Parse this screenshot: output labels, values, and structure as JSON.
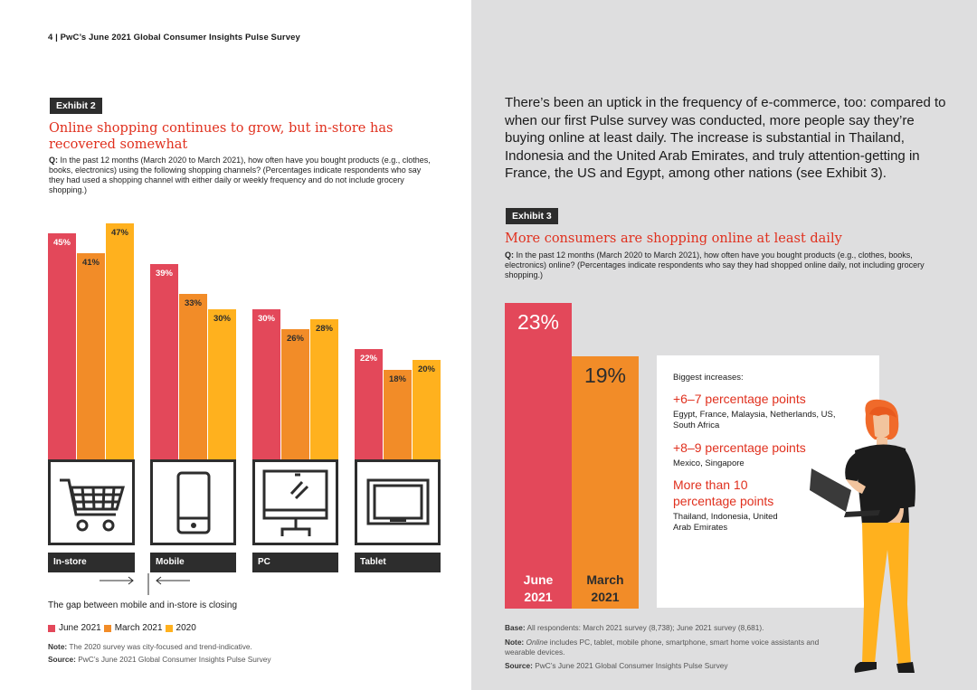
{
  "header": {
    "text": "4  |  PwC’s June 2021 Global Consumer Insights Pulse Survey"
  },
  "exhibit2": {
    "tag": "Exhibit 2",
    "title": "Online shopping continues to grow, but in-store has recovered somewhat",
    "q_prefix": "Q:",
    "question": " In the past 12 months (March 2020 to March 2021), how often have you bought products (e.g., clothes, books, electronics) using the following shopping channels? (Percentages indicate respondents who say they had used a shopping channel with either daily or weekly frequency and do not include grocery shopping.)",
    "gap_text": "The gap between mobile and in-store is closing",
    "legend": [
      "June 2021",
      "March 2021",
      "2020"
    ],
    "note_label": "Note:",
    "note": " The 2020 survey was city-focused and trend-indicative.",
    "source_label": "Source:",
    "source": " PwC’s June 2021 Global Consumer Insights Pulse Survey"
  },
  "exhibit3": {
    "tag": "Exhibit 3",
    "title": "More consumers are shopping online at least daily",
    "q_prefix": "Q:",
    "question": " In the past 12 months (March 2020 to March 2021), how often have you bought products (e.g., clothes, books, electronics) online? (Percentages indicate respondents who say they had shopped online daily, not including grocery shopping.)",
    "panel": {
      "title": "Biggest increases:",
      "groups": [
        {
          "head": "+6–7 percentage points",
          "body": "Egypt, France, Malaysia, Netherlands, US, South Africa"
        },
        {
          "head": "+8–9 percentage points",
          "body": "Mexico, Singapore"
        },
        {
          "head": "More than 10 percentage points",
          "body": "Thailand, Indonesia, United Arab Emirates"
        }
      ]
    },
    "base_label": "Base:",
    "base": " All respondents: March 2021 survey (8,738); June 2021 survey (8,681).",
    "note_label": "Note:",
    "note_italic": "Online",
    "note": " includes PC, tablet, mobile phone, smartphone, smart home voice assistants and wearable devices.",
    "source_label": "Source:",
    "source": " PwC’s June 2021 Global Consumer Insights Pulse Survey"
  },
  "intro": "There’s been an uptick in the frequency of e-commerce, too: compared to when our first Pulse survey was conducted, more people say they’re buying online at least daily. The increase is substantial in Thailand, Indonesia and the United Arab Emirates, and truly attention-getting in France, the US and Egypt, among other nations (see Exhibit 3).",
  "colors": {
    "june2021": "#e3485a",
    "march2021": "#f28c28",
    "y2020": "#ffb11e",
    "dark": "#2d2d2d",
    "accent": "#e0301e"
  },
  "chart_data": [
    {
      "type": "bar",
      "categories": [
        "In-store",
        "Mobile",
        "PC",
        "Tablet"
      ],
      "icons": [
        "shopping-cart-icon",
        "mobile-phone-icon",
        "desktop-monitor-icon",
        "tablet-icon"
      ],
      "series": [
        {
          "name": "June 2021",
          "values": [
            45,
            39,
            30,
            22
          ]
        },
        {
          "name": "March 2021",
          "values": [
            41,
            33,
            26,
            18
          ]
        },
        {
          "name": "2020",
          "values": [
            47,
            30,
            28,
            20
          ]
        }
      ],
      "value_labels": [
        [
          "45%",
          "41%",
          "47%"
        ],
        [
          "39%",
          "33%",
          "30%"
        ],
        [
          "30%",
          "26%",
          "28%"
        ],
        [
          "22%",
          "18%",
          "20%"
        ]
      ],
      "title": "Online shopping continues to grow, but in-store has recovered somewhat",
      "ylim": [
        0,
        47
      ]
    },
    {
      "type": "bar",
      "categories": [
        "June 2021",
        "March 2021"
      ],
      "category_lines": [
        [
          "June",
          "2021"
        ],
        [
          "March",
          "2021"
        ]
      ],
      "values": [
        23,
        19
      ],
      "value_labels": [
        "23%",
        "19%"
      ],
      "title": "More consumers are shopping online at least daily",
      "ylim": [
        0,
        23
      ]
    }
  ]
}
